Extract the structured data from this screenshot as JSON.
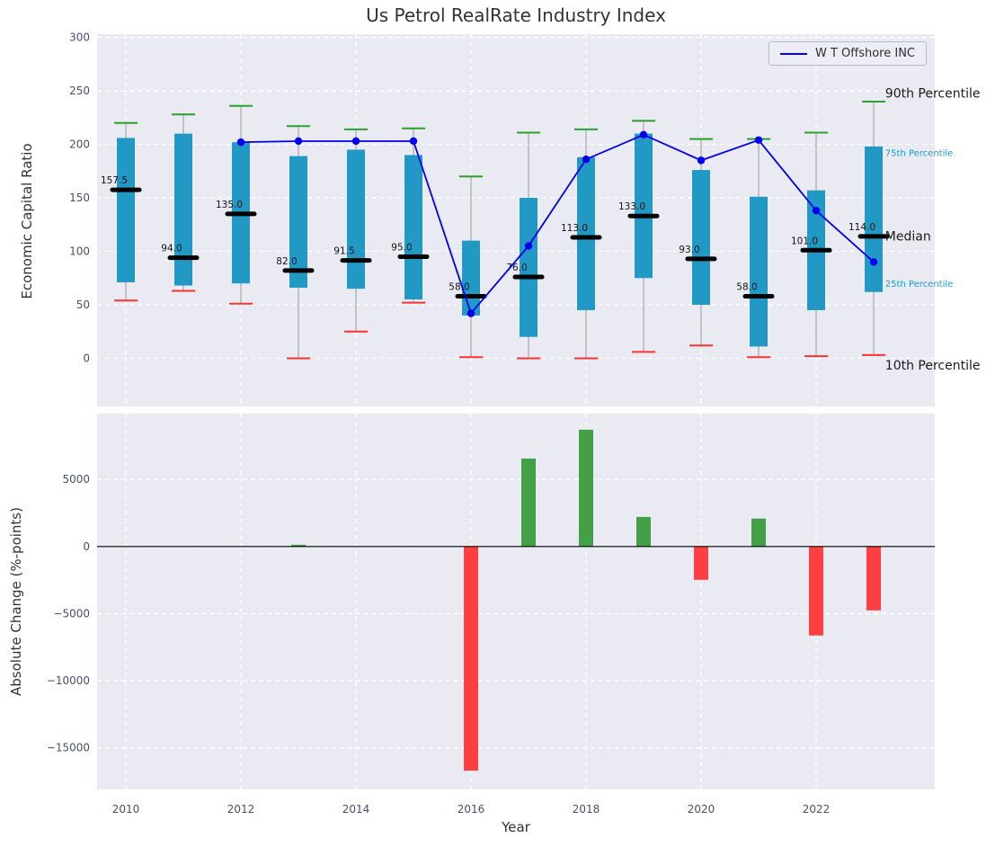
{
  "title": "Us Petrol RealRate Industry Index",
  "style": {
    "page_bg": "#ffffff",
    "plot_bg": "#eaeaf2",
    "grid_color": "#ffffff",
    "tick_color": "#49506a",
    "title_color": "#333333"
  },
  "legend": {
    "label": "W T Offshore INC",
    "line_color": "#0000ee"
  },
  "chart_data": [
    {
      "type": "boxplot+line",
      "title": "Us Petrol RealRate Industry Index",
      "ylabel": "Economic Capital Ratio",
      "ylim": [
        -45,
        303
      ],
      "yticks": [
        0,
        50,
        100,
        150,
        200,
        250,
        300
      ],
      "ytick_labels": [
        "0",
        "50",
        "100",
        "150",
        "200",
        "250",
        "300"
      ],
      "xticks": [
        2010,
        2012,
        2014,
        2016,
        2018,
        2020,
        2022
      ],
      "years": [
        2010,
        2011,
        2012,
        2013,
        2014,
        2015,
        2016,
        2017,
        2018,
        2019,
        2020,
        2021,
        2022,
        2023
      ],
      "percentile_90": [
        220,
        228,
        236,
        217,
        214,
        215,
        170,
        211,
        214,
        222,
        205,
        205,
        211,
        240
      ],
      "percentile_75": [
        206,
        210,
        202,
        189,
        195,
        190,
        110,
        150,
        188,
        210,
        176,
        151,
        157,
        198
      ],
      "median": [
        157.5,
        94.0,
        135.0,
        82.0,
        91.5,
        95.0,
        58.0,
        76.0,
        113.0,
        133.0,
        93.0,
        58.0,
        101.0,
        114.0
      ],
      "median_labels": [
        "157.5",
        "94.0",
        "135.0",
        "82.0",
        "91.5",
        "95.0",
        "58.0",
        "76.0",
        "113.0",
        "133.0",
        "93.0",
        "58.0",
        "101.0",
        "114.0"
      ],
      "percentile_25": [
        71,
        68,
        70,
        66,
        65,
        55,
        40,
        20,
        45,
        75,
        50,
        11,
        45,
        62
      ],
      "percentile_10": [
        54,
        63,
        51,
        0,
        25,
        52,
        1,
        0,
        0,
        6,
        12,
        1,
        2,
        3
      ],
      "line_series": {
        "name": "W T Offshore INC",
        "years": [
          2012,
          2013,
          2014,
          2015,
          2016,
          2017,
          2018,
          2019,
          2020,
          2021,
          2022,
          2023
        ],
        "values": [
          202,
          203,
          203,
          203,
          42,
          105,
          186,
          209,
          185,
          204,
          138,
          90
        ]
      },
      "annotations": [
        {
          "text": "90th Percentile",
          "x": 2023.2,
          "y": 248,
          "size": 14,
          "color": "#1a1a1a"
        },
        {
          "text": "75th Percentile",
          "x": 2023.2,
          "y": 192,
          "size": 10,
          "color": "#1b9ec9"
        },
        {
          "text": "Median",
          "x": 2023.2,
          "y": 114.5,
          "size": 14,
          "color": "#1a1a1a"
        },
        {
          "text": "25th Percentile",
          "x": 2023.2,
          "y": 70,
          "size": 10,
          "color": "#1b9ec9"
        },
        {
          "text": "10th Percentile",
          "x": 2023.2,
          "y": -6.5,
          "size": 14,
          "color": "#1a1a1a"
        }
      ],
      "colors": {
        "box": "#2199c4",
        "whisker": "#a8a8a8",
        "cap_top": "#2ca02c",
        "cap_bottom": "#ff3030",
        "median": "#000000",
        "line": "#0000ee"
      }
    },
    {
      "type": "bar",
      "xlabel": "Year",
      "ylabel": "Absolute Change (%-points)",
      "ylim": [
        -18100,
        9900
      ],
      "yticks": [
        5000,
        0,
        -5000,
        -10000,
        -15000
      ],
      "ytick_labels": [
        "5000",
        "0",
        "−5000",
        "−10000",
        "−15000"
      ],
      "xticks": [
        2010,
        2012,
        2014,
        2016,
        2018,
        2020,
        2022
      ],
      "xtick_labels": [
        "2010",
        "2012",
        "2014",
        "2016",
        "2018",
        "2020",
        "2022"
      ],
      "years": [
        2010,
        2011,
        2012,
        2013,
        2014,
        2015,
        2016,
        2017,
        2018,
        2019,
        2020,
        2021,
        2022,
        2023
      ],
      "values": [
        0,
        0,
        0,
        130,
        0,
        0,
        -16700,
        6550,
        8700,
        2200,
        -2480,
        2080,
        -6630,
        -4760
      ],
      "colors": {
        "positive": "#43a047",
        "negative": "#ff4043"
      }
    }
  ]
}
